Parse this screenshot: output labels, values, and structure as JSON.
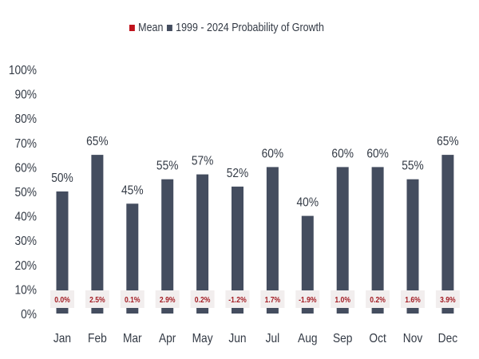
{
  "colors": {
    "bar": "#444d5f",
    "mean_text": "#a31c24",
    "mean_box": "#f2eeee",
    "axis_text": "#333a45",
    "mean_legend": "#c0121c"
  },
  "legend": {
    "mean_label": "Mean",
    "growth_label": "1999 - 2024 Probability of Growth"
  },
  "chart_data": {
    "type": "bar",
    "categories": [
      "Jan",
      "Feb",
      "Mar",
      "Apr",
      "May",
      "Jun",
      "Jul",
      "Aug",
      "Sep",
      "Oct",
      "Nov",
      "Dec"
    ],
    "series": [
      {
        "name": "1999 - 2024 Probability of Growth",
        "values": [
          50,
          65,
          45,
          55,
          57,
          52,
          60,
          40,
          60,
          60,
          55,
          65
        ],
        "data_labels": [
          "50%",
          "65%",
          "45%",
          "55%",
          "57%",
          "52%",
          "60%",
          "40%",
          "60%",
          "60%",
          "55%",
          "65%"
        ]
      },
      {
        "name": "Mean",
        "values": [
          0.0,
          2.5,
          0.1,
          2.9,
          0.2,
          -1.2,
          1.7,
          -1.9,
          1.0,
          0.2,
          1.6,
          3.9
        ],
        "data_labels": [
          "0.0%",
          "2.5%",
          "0.1%",
          "2.9%",
          "0.2%",
          "-1.2%",
          "1.7%",
          "-1.9%",
          "1.0%",
          "0.2%",
          "1.6%",
          "3.9%"
        ]
      }
    ],
    "y_ticks": [
      "0%",
      "10%",
      "20%",
      "30%",
      "40%",
      "50%",
      "60%",
      "70%",
      "80%",
      "90%",
      "100%"
    ],
    "ylim": [
      0,
      100
    ],
    "grid": false,
    "legend_position": "top-center"
  }
}
